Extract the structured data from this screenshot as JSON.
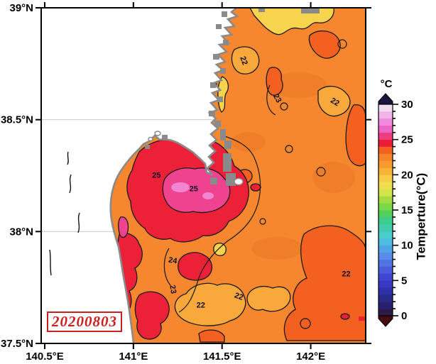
{
  "date_stamp": "20200803",
  "chart_data": {
    "type": "heatmap",
    "variable": "sea surface temperature",
    "date_label": "20200803",
    "region": {
      "lon_min": 140.48,
      "lon_max": 142.31,
      "lat_min": 37.5,
      "lat_max": 39.0
    },
    "x_ticks": [
      {
        "lon": 140.5,
        "label": "140.5°E"
      },
      {
        "lon": 141.0,
        "label": "141°E"
      },
      {
        "lon": 141.5,
        "label": "141.5°E"
      },
      {
        "lon": 142.0,
        "label": "142°E"
      }
    ],
    "y_ticks": [
      {
        "lat": 39.0,
        "label": "39°N"
      },
      {
        "lat": 38.5,
        "label": "38.5°N"
      },
      {
        "lat": 38.0,
        "label": "38°N"
      },
      {
        "lat": 37.5,
        "label": "37.5°N"
      }
    ],
    "grid_lats": [
      38.0,
      38.5
    ],
    "contour_interval_c": 1,
    "contour_labels": [
      {
        "value": "25",
        "lon": 141.13,
        "lat": 38.24,
        "rot": 0
      },
      {
        "value": "25",
        "lon": 141.34,
        "lat": 38.18,
        "rot": 0
      },
      {
        "value": "24",
        "lon": 141.22,
        "lat": 37.86,
        "rot": 10
      },
      {
        "value": "23",
        "lon": 141.21,
        "lat": 37.74,
        "rot": 80
      },
      {
        "value": "23",
        "lon": 141.8,
        "lat": 38.59,
        "rot": 60
      },
      {
        "value": "22",
        "lon": 141.38,
        "lat": 37.66,
        "rot": 0
      },
      {
        "value": "22",
        "lon": 141.59,
        "lat": 37.7,
        "rot": 20
      },
      {
        "value": "22",
        "lon": 142.2,
        "lat": 37.8,
        "rot": 0
      },
      {
        "value": "22",
        "lon": 141.61,
        "lat": 38.76,
        "rot": 70
      },
      {
        "value": "22",
        "lon": 142.13,
        "lat": 38.57,
        "rot": 30
      }
    ],
    "sea_features": [
      {
        "name": "offshore-background",
        "approx_temp_c": 23.0,
        "color": "#f6872e"
      },
      {
        "name": "warm-bay-area",
        "approx_temp_c": 24.5,
        "color": "#ec2138"
      },
      {
        "name": "bay-warm-core",
        "approx_temp_c": 26.0,
        "color": "#ef4390"
      },
      {
        "name": "bay-warmest-spot",
        "approx_temp_c": 27.0,
        "color": "#f185d2"
      },
      {
        "name": "cool-patch-north",
        "approx_temp_c": 21.5,
        "color": "#f8d44e"
      },
      {
        "name": "cool-patch-south",
        "approx_temp_c": 22.0,
        "color": "#f9a83c"
      },
      {
        "name": "warm-patch-offshore",
        "approx_temp_c": 23.5,
        "color": "#f4601f"
      }
    ],
    "land_color": "#ffffff",
    "coast_color": "#8a8a8a",
    "colorbar": {
      "title": "Temperture(°C)",
      "unit_label": "°C",
      "min": 0,
      "max": 30,
      "major_tick_step": 5,
      "tick_labels": [
        "0",
        "5",
        "10",
        "15",
        "20",
        "25",
        "30"
      ],
      "over_color": "#1c1340",
      "under_color": "#470a10",
      "segment_colors": [
        "#2e1a4a",
        "#27206e",
        "#2a2a8a",
        "#3030a8",
        "#3838c2",
        "#4046d2",
        "#4a5cda",
        "#5274e2",
        "#588ce8",
        "#4fa4e4",
        "#4cbce0",
        "#48cccc",
        "#42ccae",
        "#3ecc8e",
        "#52d05a",
        "#7ad846",
        "#a6dc42",
        "#d2e44a",
        "#eede4e",
        "#f8cc44",
        "#f8b438",
        "#f89c30",
        "#f78428",
        "#f4601f",
        "#ec1c38",
        "#f03c80",
        "#ee64c4",
        "#f08ade",
        "#f2b4e6",
        "#f0dcee"
      ]
    }
  }
}
